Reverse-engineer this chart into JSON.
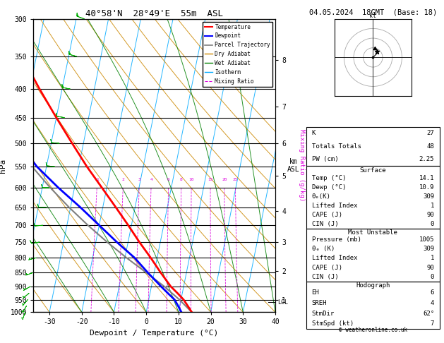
{
  "title_left": "40°58'N  28°49'E  55m  ASL",
  "title_right": "04.05.2024  18GMT  (Base: 18)",
  "xlabel": "Dewpoint / Temperature (°C)",
  "ylabel_left": "hPa",
  "pressure_ticks": [
    300,
    350,
    400,
    450,
    500,
    550,
    600,
    650,
    700,
    750,
    800,
    850,
    900,
    950,
    1000
  ],
  "km_ticks": [
    8,
    7,
    6,
    5,
    4,
    3,
    2,
    1
  ],
  "km_pressures": [
    355,
    430,
    500,
    572,
    660,
    750,
    845,
    950
  ],
  "xlim": [
    -35,
    40
  ],
  "p_min": 300,
  "p_max": 1000,
  "skew_factor": 35.0,
  "temp_profile_p": [
    1000,
    975,
    950,
    925,
    900,
    850,
    800,
    750,
    700,
    650,
    600,
    550,
    500,
    450,
    400,
    350,
    300
  ],
  "temp_profile_t": [
    14.1,
    12.5,
    10.8,
    8.5,
    6.0,
    2.0,
    -2.0,
    -6.5,
    -11.0,
    -16.0,
    -21.5,
    -27.5,
    -33.5,
    -40.0,
    -47.0,
    -54.5,
    -62.0
  ],
  "dewp_profile_p": [
    1000,
    975,
    950,
    925,
    900,
    850,
    800,
    750,
    700,
    650,
    600,
    550,
    500,
    450,
    400,
    350,
    300
  ],
  "dewp_profile_t": [
    10.9,
    9.5,
    8.0,
    5.5,
    3.0,
    -2.0,
    -7.0,
    -13.5,
    -20.0,
    -27.0,
    -35.0,
    -43.0,
    -50.0,
    -56.0,
    -62.0,
    -67.0,
    -72.0
  ],
  "parcel_profile_p": [
    1000,
    950,
    900,
    850,
    800,
    750,
    700,
    650,
    600,
    550,
    500,
    450,
    400,
    350,
    300
  ],
  "parcel_profile_t": [
    14.1,
    9.5,
    4.0,
    -2.5,
    -9.5,
    -16.5,
    -23.5,
    -30.5,
    -37.5,
    -44.5,
    -51.5,
    -58.5,
    -65.5,
    -72.5,
    -79.5
  ],
  "lcl_pressure": 960,
  "color_temp": "#ff0000",
  "color_dewp": "#0000ff",
  "color_parcel": "#808080",
  "color_dry_adiabat": "#cc8800",
  "color_wet_adiabat": "#008000",
  "color_isotherm": "#00aaff",
  "color_mixing": "#dd00dd",
  "color_background": "#ffffff",
  "mixing_ratio_vals": [
    1,
    2,
    3,
    4,
    6,
    8,
    10,
    15,
    20,
    25
  ],
  "wind_p": [
    1000,
    975,
    950,
    925,
    900,
    850,
    800,
    750,
    700,
    650,
    600,
    550,
    500,
    450,
    400,
    350,
    300
  ],
  "wind_spd": [
    5,
    5,
    5,
    5,
    5,
    7,
    7,
    10,
    10,
    10,
    10,
    12,
    12,
    12,
    15,
    15,
    15
  ],
  "wind_dir": [
    200,
    210,
    220,
    230,
    240,
    250,
    255,
    260,
    265,
    270,
    270,
    275,
    275,
    280,
    280,
    285,
    290
  ],
  "stats": {
    "K": 27,
    "Totals_Totals": 48,
    "PW_cm": "2.25",
    "Surface_Temp": "14.1",
    "Surface_Dewp": "10.9",
    "Surface_theta_e": 309,
    "Surface_LI": 1,
    "Surface_CAPE": 90,
    "Surface_CIN": 0,
    "MU_Pressure": 1005,
    "MU_theta_e": 309,
    "MU_LI": 1,
    "MU_CAPE": 90,
    "MU_CIN": 0,
    "EH": 6,
    "SREH": 4,
    "StmDir": "62°",
    "StmSpd": 7
  }
}
